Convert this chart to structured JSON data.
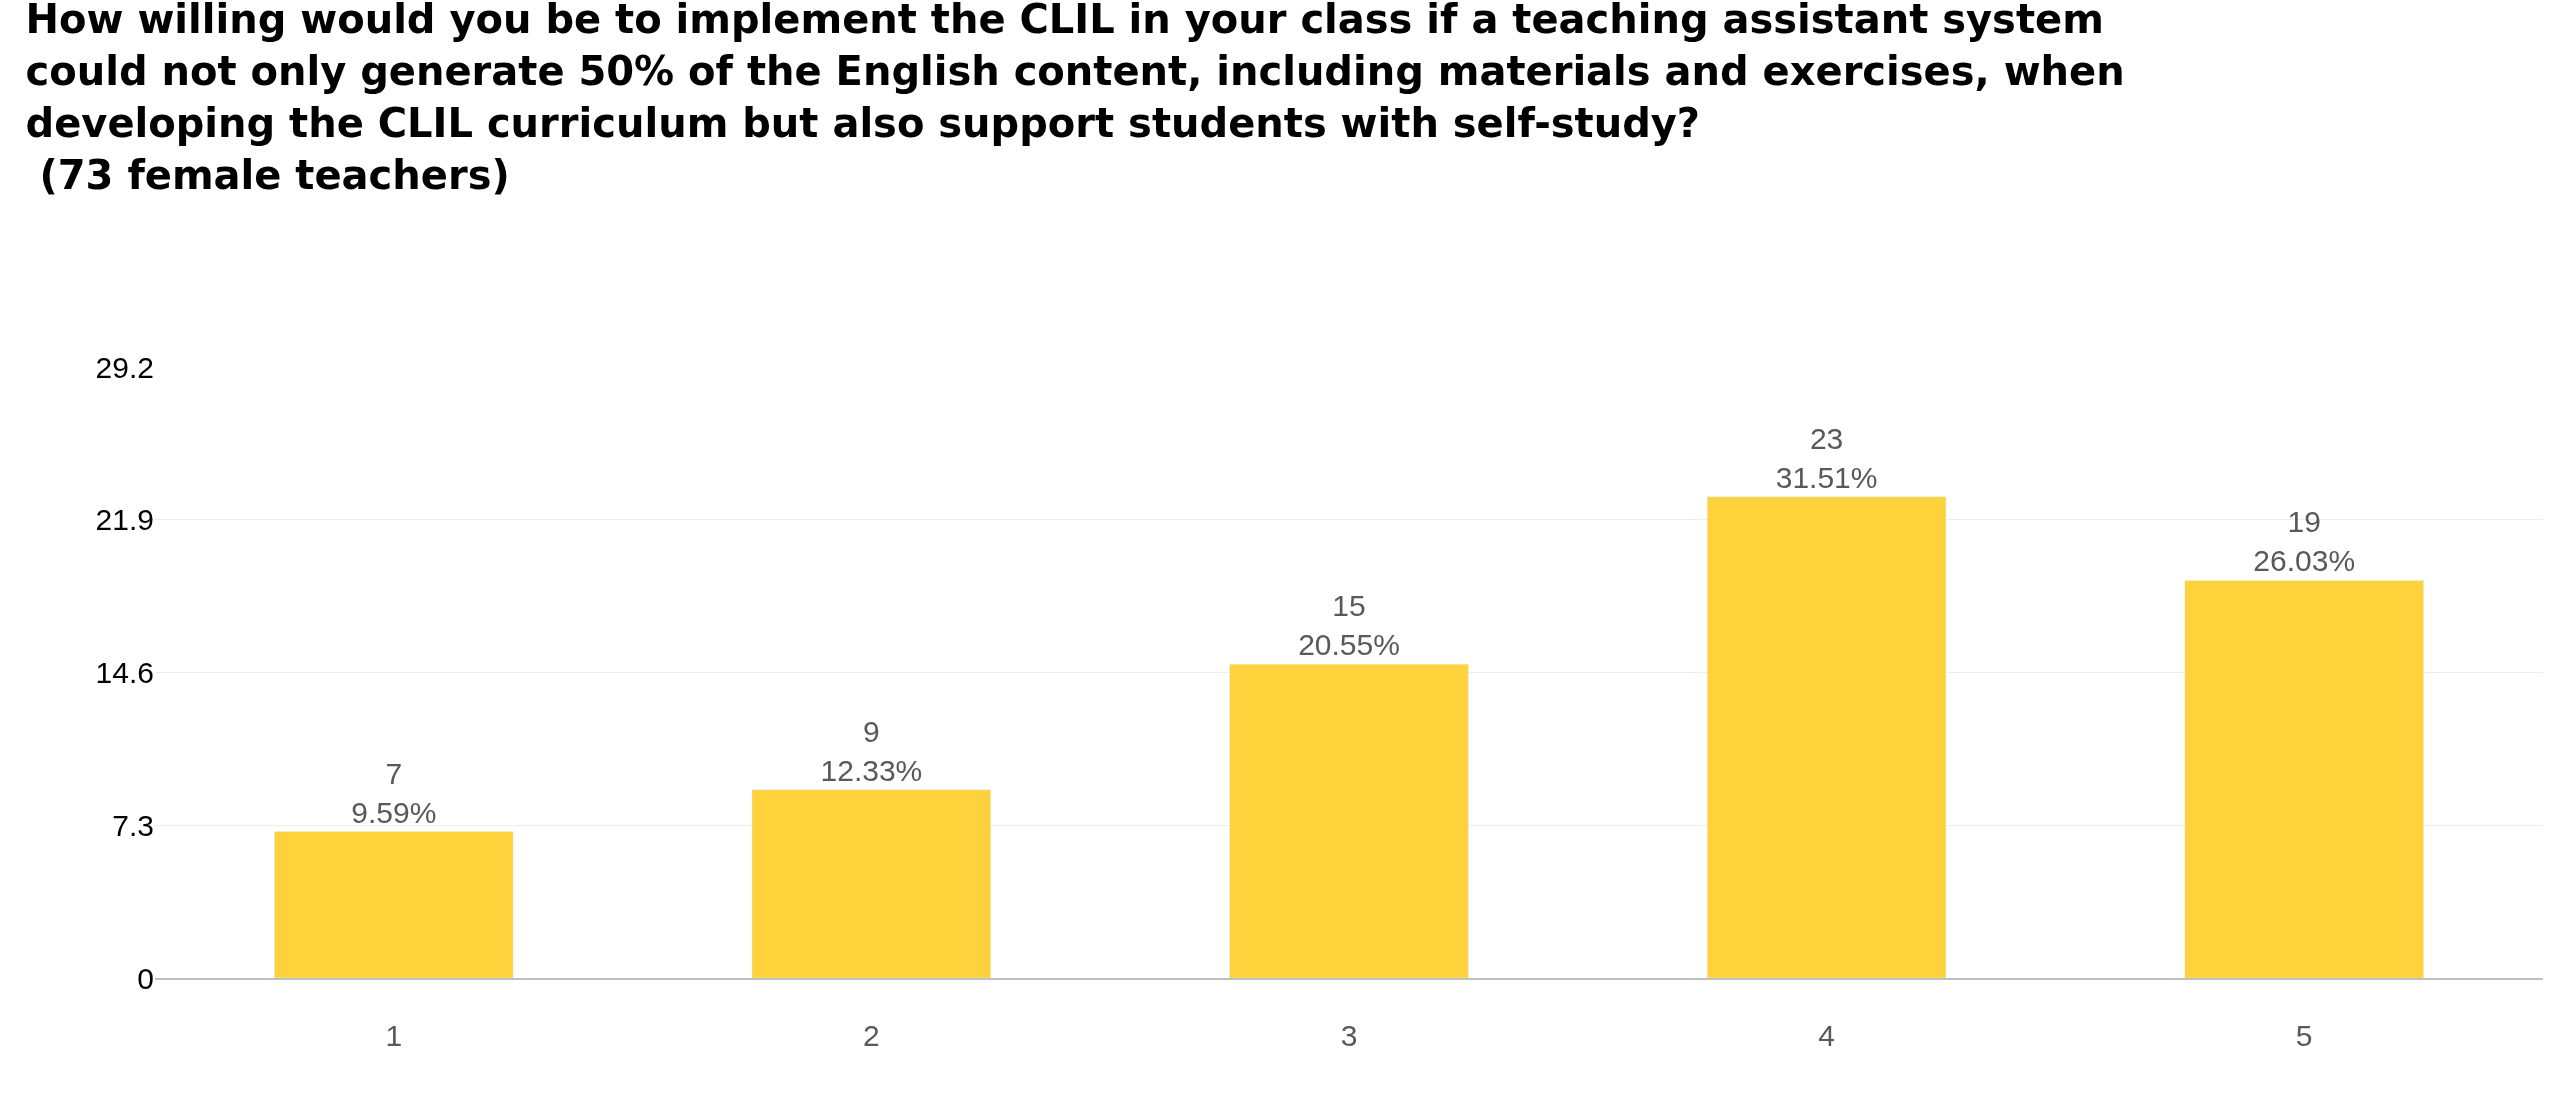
{
  "chart_data": {
    "type": "bar",
    "title": "How willing would you be to implement the CLIL in your class if a teaching assistant system\ncould not only generate 50% of the English content, including materials and exercises, when\ndeveloping the CLIL curriculum but also support students with self-study?\n (73 female teachers)",
    "categories": [
      "1",
      "2",
      "3",
      "4",
      "5"
    ],
    "values": [
      7,
      9,
      15,
      23,
      19
    ],
    "value_labels": [
      "7\n9.59%",
      "9\n12.33%",
      "15\n20.55%",
      "23\n31.51%",
      "19\n26.03%"
    ],
    "color": "#fdd23b",
    "ylim": [
      0,
      29.2
    ],
    "yticks": [
      0,
      7.3,
      14.6,
      21.9,
      29.2
    ],
    "grid": "y"
  }
}
